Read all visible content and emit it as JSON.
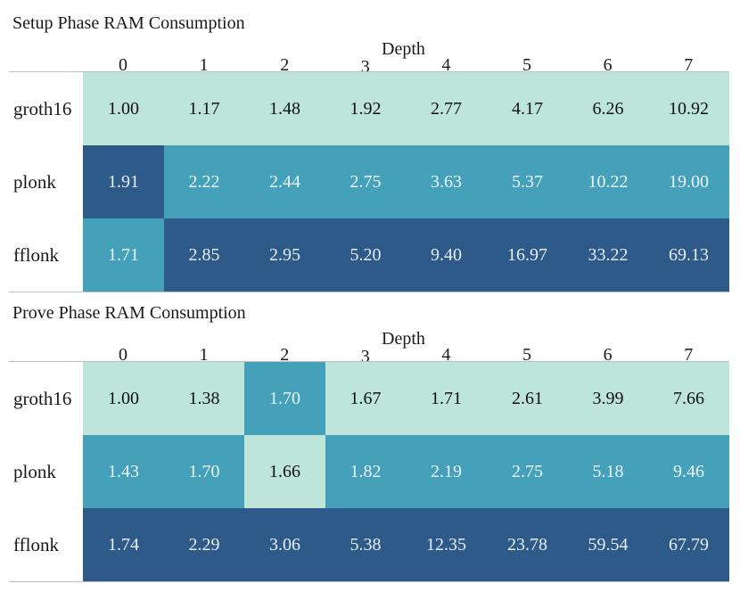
{
  "colors": {
    "light": "#bde5da",
    "mid": "#45a0b9",
    "dark": "#2d5a89"
  },
  "chart_data": [
    {
      "type": "heatmap",
      "title": "Setup Phase RAM Consumption",
      "xlabel": "Depth",
      "x": [
        "0",
        "1",
        "2",
        "3",
        "4",
        "5",
        "6",
        "7"
      ],
      "rows": [
        {
          "label": "groth16",
          "values": [
            "1.00",
            "1.17",
            "1.48",
            "1.92",
            "2.77",
            "4.17",
            "6.26",
            "10.92"
          ],
          "shade": [
            "light",
            "light",
            "light",
            "light",
            "light",
            "light",
            "light",
            "light"
          ]
        },
        {
          "label": "plonk",
          "values": [
            "1.91",
            "2.22",
            "2.44",
            "2.75",
            "3.63",
            "5.37",
            "10.22",
            "19.00"
          ],
          "shade": [
            "dark",
            "mid",
            "mid",
            "mid",
            "mid",
            "mid",
            "mid",
            "mid"
          ]
        },
        {
          "label": "fflonk",
          "values": [
            "1.71",
            "2.85",
            "2.95",
            "5.20",
            "9.40",
            "16.97",
            "33.22",
            "69.13"
          ],
          "shade": [
            "mid",
            "dark",
            "dark",
            "dark",
            "dark",
            "dark",
            "dark",
            "dark"
          ]
        }
      ]
    },
    {
      "type": "heatmap",
      "title": "Prove Phase RAM Consumption",
      "xlabel": "Depth",
      "x": [
        "0",
        "1",
        "2",
        "3",
        "4",
        "5",
        "6",
        "7"
      ],
      "rows": [
        {
          "label": "groth16",
          "values": [
            "1.00",
            "1.38",
            "1.70",
            "1.67",
            "1.71",
            "2.61",
            "3.99",
            "7.66"
          ],
          "shade": [
            "light",
            "light",
            "mid",
            "light",
            "light",
            "light",
            "light",
            "light"
          ]
        },
        {
          "label": "plonk",
          "values": [
            "1.43",
            "1.70",
            "1.66",
            "1.82",
            "2.19",
            "2.75",
            "5.18",
            "9.46"
          ],
          "shade": [
            "mid",
            "mid",
            "light",
            "mid",
            "mid",
            "mid",
            "mid",
            "mid"
          ]
        },
        {
          "label": "fflonk",
          "values": [
            "1.74",
            "2.29",
            "3.06",
            "5.38",
            "12.35",
            "23.78",
            "59.54",
            "67.79"
          ],
          "shade": [
            "dark",
            "dark",
            "dark",
            "dark",
            "dark",
            "dark",
            "dark",
            "dark"
          ]
        }
      ]
    }
  ]
}
